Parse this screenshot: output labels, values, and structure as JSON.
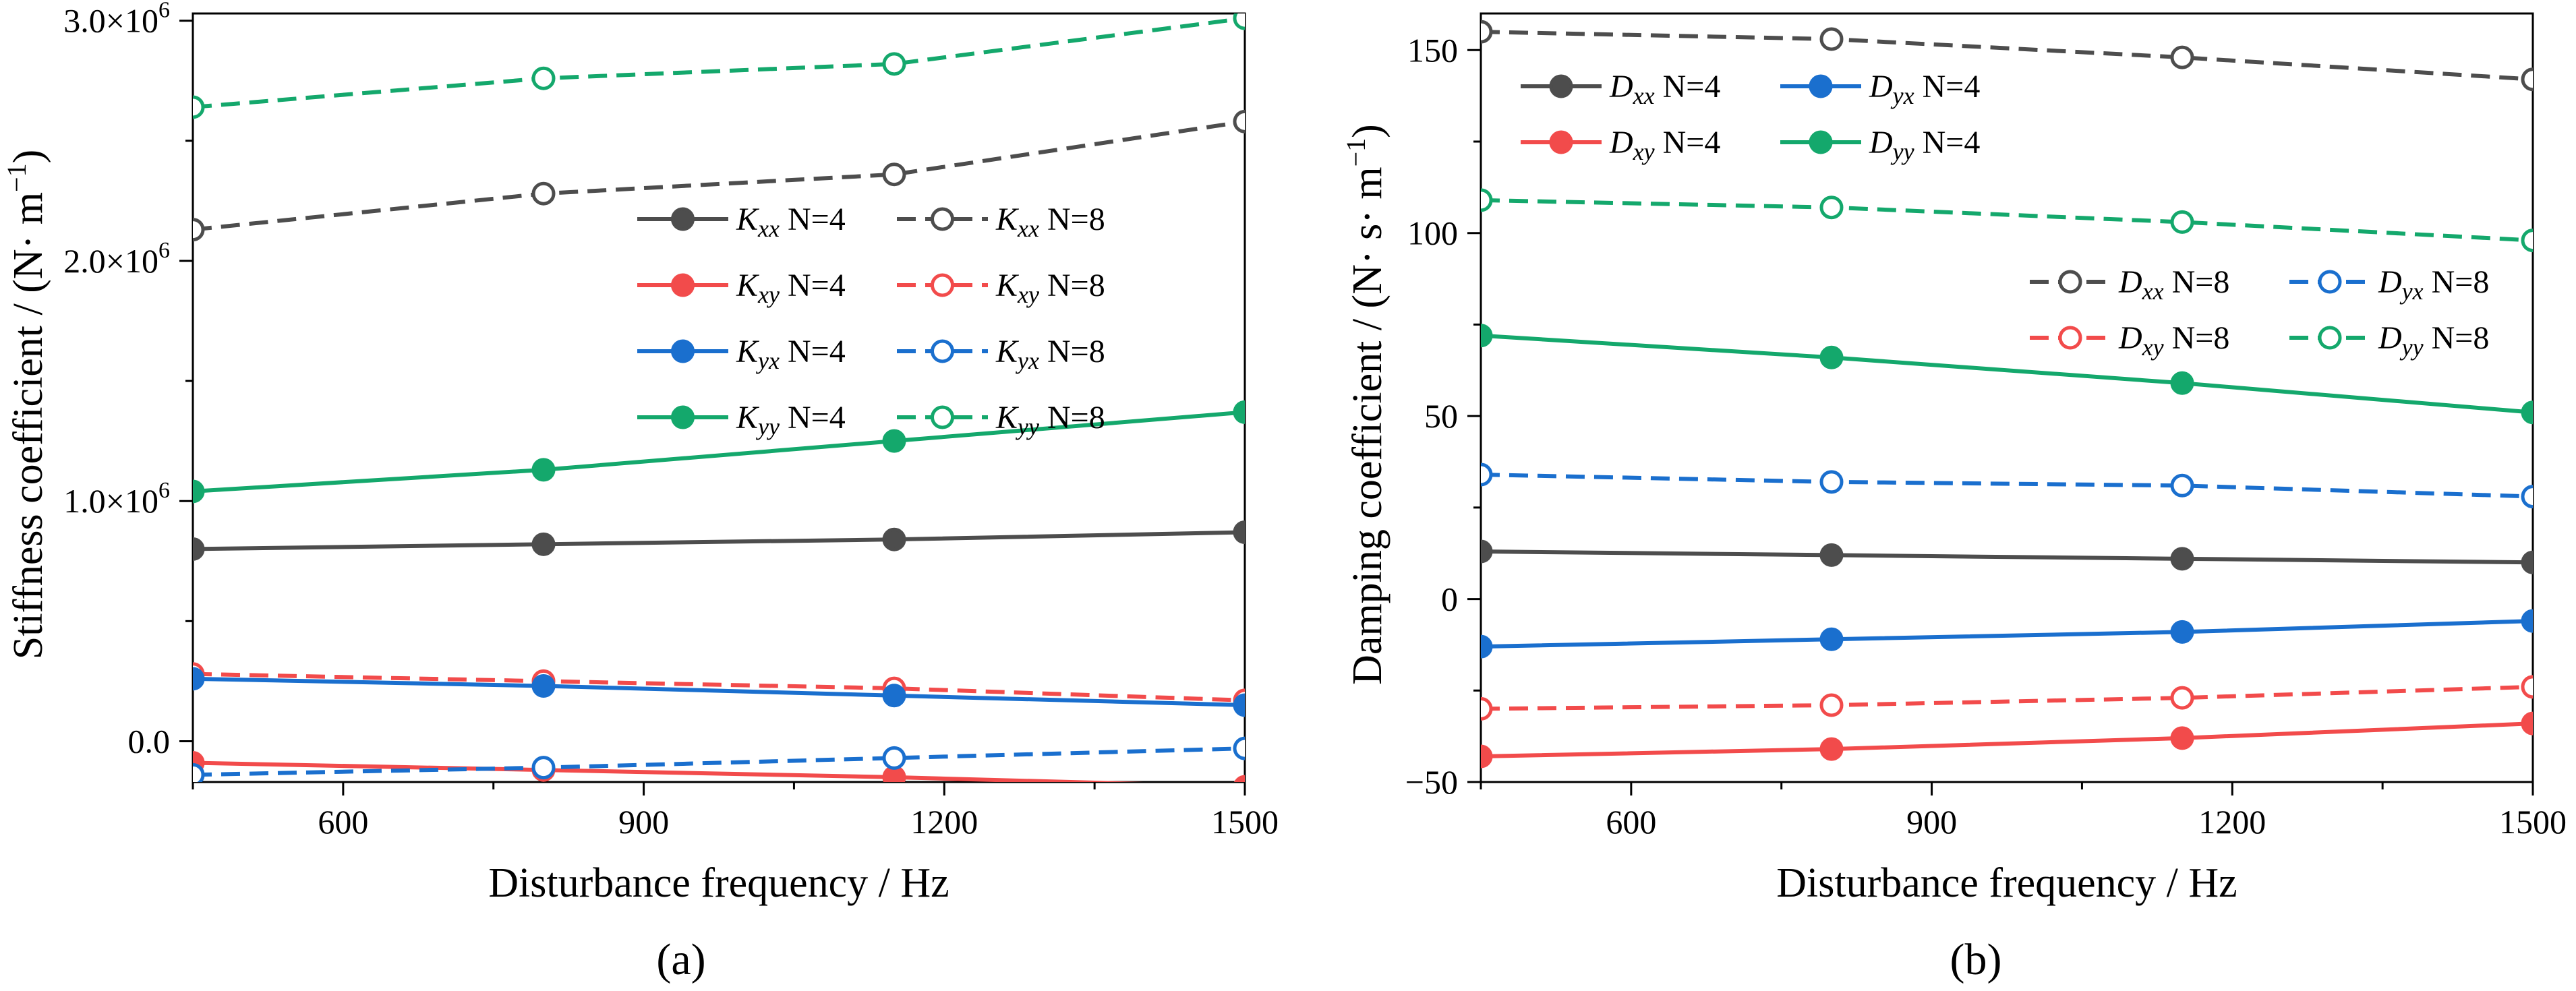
{
  "colors": {
    "black": "#4d4d4d",
    "red": "#f24b4b",
    "blue": "#1a6fce",
    "green": "#14a86c"
  },
  "chart_data": [
    {
      "type": "line",
      "panel_label": "(a)",
      "xlabel": "Disturbance frequency / Hz",
      "ylabel": "Stiffness coefficient / (N· m",
      "ylabel_sup": "−1",
      "ylabel_end": ")",
      "xlim": [
        450,
        1500
      ],
      "ylim": [
        -0.17,
        3.03
      ],
      "x_ticks": [
        600,
        900,
        1200,
        1500
      ],
      "y_ticks": [
        0,
        1,
        2,
        3
      ],
      "y_tick_labels": [
        {
          "value": 0,
          "base": "0.0",
          "exp": ""
        },
        {
          "value": 1,
          "base": "1.0×10",
          "exp": "6"
        },
        {
          "value": 2,
          "base": "2.0×10",
          "exp": "6"
        },
        {
          "value": 3,
          "base": "3.0×10",
          "exp": "6"
        }
      ],
      "x": [
        450,
        800,
        1150,
        1500
      ],
      "legend_rows": 4,
      "series": [
        {
          "sym": "K",
          "sub": "xx",
          "suffix": " N=4",
          "color": "black",
          "style": "solid",
          "marker": "filled",
          "values": [
            0.8,
            0.82,
            0.84,
            0.87
          ]
        },
        {
          "sym": "K",
          "sub": "xx",
          "suffix": " N=8",
          "color": "black",
          "style": "dashed",
          "marker": "open",
          "values": [
            2.13,
            2.28,
            2.36,
            2.58
          ]
        },
        {
          "sym": "K",
          "sub": "xy",
          "suffix": " N=4",
          "color": "red",
          "style": "solid",
          "marker": "filled",
          "values": [
            -0.09,
            -0.12,
            -0.15,
            -0.19
          ]
        },
        {
          "sym": "K",
          "sub": "xy",
          "suffix": " N=8",
          "color": "red",
          "style": "dashed",
          "marker": "open",
          "values": [
            0.28,
            0.25,
            0.22,
            0.17
          ]
        },
        {
          "sym": "K",
          "sub": "yx",
          "suffix": " N=4",
          "color": "blue",
          "style": "solid",
          "marker": "filled",
          "values": [
            0.26,
            0.23,
            0.19,
            0.15
          ]
        },
        {
          "sym": "K",
          "sub": "yx",
          "suffix": " N=8",
          "color": "blue",
          "style": "dashed",
          "marker": "open",
          "values": [
            -0.14,
            -0.11,
            -0.07,
            -0.03
          ]
        },
        {
          "sym": "K",
          "sub": "yy",
          "suffix": " N=4",
          "color": "green",
          "style": "solid",
          "marker": "filled",
          "values": [
            1.04,
            1.13,
            1.25,
            1.37
          ]
        },
        {
          "sym": "K",
          "sub": "yy",
          "suffix": " N=8",
          "color": "green",
          "style": "dashed",
          "marker": "open",
          "values": [
            2.64,
            2.76,
            2.82,
            3.01
          ]
        }
      ]
    },
    {
      "type": "line",
      "panel_label": "(b)",
      "xlabel": "Disturbance frequency / Hz",
      "ylabel": "Damping coefficient / (N· s· m",
      "ylabel_sup": "−1",
      "ylabel_end": ")",
      "xlim": [
        450,
        1500
      ],
      "ylim": [
        -50,
        160
      ],
      "x_ticks": [
        600,
        900,
        1200,
        1500
      ],
      "y_ticks": [
        -50,
        0,
        50,
        100,
        150
      ],
      "y_tick_labels": [
        {
          "value": -50,
          "base": "−50",
          "exp": ""
        },
        {
          "value": 0,
          "base": "0",
          "exp": ""
        },
        {
          "value": 50,
          "base": "50",
          "exp": ""
        },
        {
          "value": 100,
          "base": "100",
          "exp": ""
        },
        {
          "value": 150,
          "base": "150",
          "exp": ""
        }
      ],
      "x": [
        450,
        800,
        1150,
        1500
      ],
      "legend_rows": 2,
      "series": [
        {
          "sym": "D",
          "sub": "xx",
          "suffix": " N=4",
          "color": "black",
          "style": "solid",
          "marker": "filled",
          "values": [
            13,
            12,
            11,
            10
          ]
        },
        {
          "sym": "D",
          "sub": "yx",
          "suffix": " N=4",
          "color": "blue",
          "style": "solid",
          "marker": "filled",
          "values": [
            -13,
            -11,
            -9,
            -6
          ]
        },
        {
          "sym": "D",
          "sub": "xy",
          "suffix": " N=4",
          "color": "red",
          "style": "solid",
          "marker": "filled",
          "values": [
            -43,
            -41,
            -38,
            -34
          ]
        },
        {
          "sym": "D",
          "sub": "yy",
          "suffix": " N=4",
          "color": "green",
          "style": "solid",
          "marker": "filled",
          "values": [
            72,
            66,
            59,
            51
          ]
        },
        {
          "sym": "D",
          "sub": "xx",
          "suffix": " N=8",
          "color": "black",
          "style": "dashed",
          "marker": "open",
          "values": [
            155,
            153,
            148,
            142
          ]
        },
        {
          "sym": "D",
          "sub": "yx",
          "suffix": " N=8",
          "color": "blue",
          "style": "dashed",
          "marker": "open",
          "values": [
            34,
            32,
            31,
            28
          ]
        },
        {
          "sym": "D",
          "sub": "xy",
          "suffix": " N=8",
          "color": "red",
          "style": "dashed",
          "marker": "open",
          "values": [
            -30,
            -29,
            -27,
            -24
          ]
        },
        {
          "sym": "D",
          "sub": "yy",
          "suffix": " N=8",
          "color": "green",
          "style": "dashed",
          "marker": "open",
          "values": [
            109,
            107,
            103,
            98
          ]
        }
      ]
    }
  ]
}
